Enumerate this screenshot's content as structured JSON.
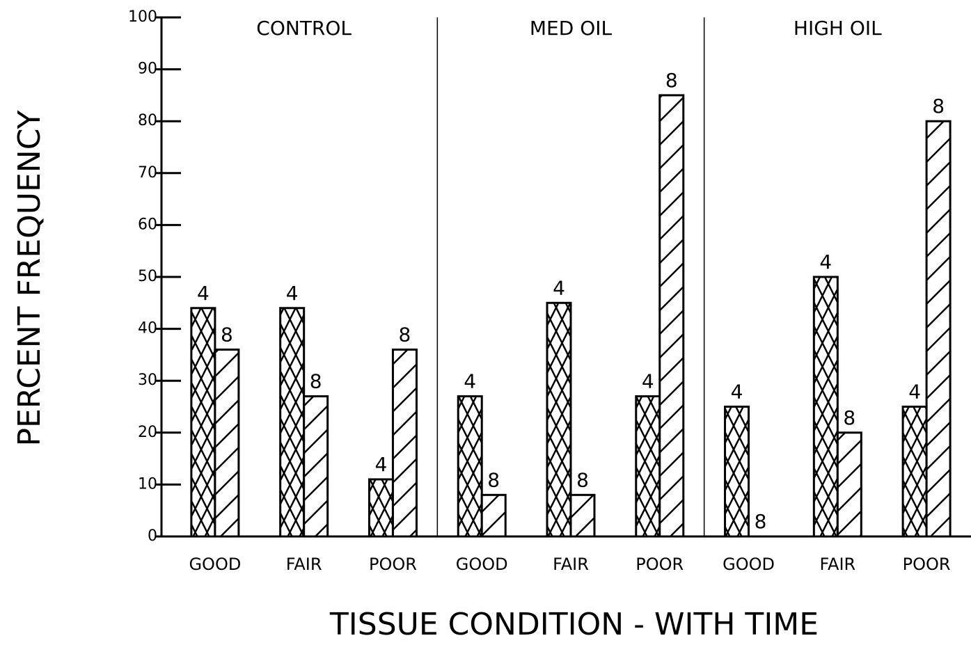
{
  "chart_data": {
    "type": "bar",
    "xlabel": "TISSUE CONDITION - WITH TIME",
    "ylabel": "PERCENT FREQUENCY",
    "groups": [
      "CONTROL",
      "MED OIL",
      "HIGH OIL"
    ],
    "categories": [
      "GOOD",
      "FAIR",
      "POOR",
      "GOOD",
      "FAIR",
      "POOR",
      "GOOD",
      "FAIR",
      "POOR"
    ],
    "series": [
      {
        "name": "4",
        "color": "#000000",
        "values": [
          44,
          44,
          11,
          27,
          45,
          27,
          25,
          50,
          25
        ]
      },
      {
        "name": "8",
        "color": "#000000",
        "values": [
          36,
          27,
          36,
          8,
          8,
          85,
          0,
          20,
          80
        ]
      }
    ],
    "ylim": [
      0,
      100
    ],
    "yticks": [
      0,
      10,
      20,
      30,
      40,
      50,
      60,
      70,
      80,
      90,
      100
    ]
  }
}
